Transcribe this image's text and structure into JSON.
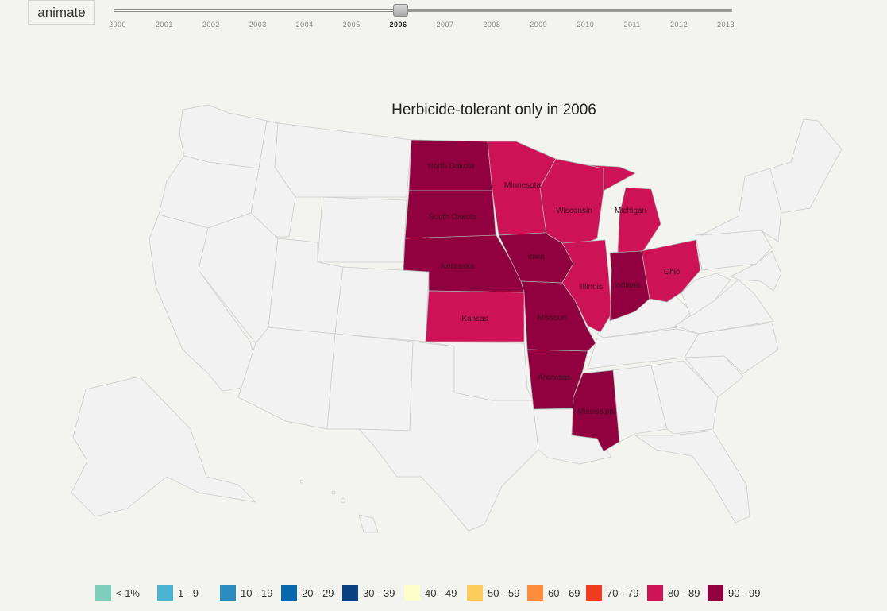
{
  "controls": {
    "animate_label": "animate",
    "selected_year": "2006",
    "years": [
      "2000",
      "2001",
      "2002",
      "2003",
      "2004",
      "2005",
      "2006",
      "2007",
      "2008",
      "2009",
      "2010",
      "2011",
      "2012",
      "2013"
    ]
  },
  "map": {
    "title": "Herbicide-tolerant only in 2006",
    "default_color": "#f2f2f2",
    "states": [
      {
        "name": "North Dakota",
        "bin": "90 - 99"
      },
      {
        "name": "South Dakota",
        "bin": "90 - 99"
      },
      {
        "name": "Nebraska",
        "bin": "90 - 99"
      },
      {
        "name": "Kansas",
        "bin": "80 - 89"
      },
      {
        "name": "Minnesota",
        "bin": "80 - 89"
      },
      {
        "name": "Iowa",
        "bin": "90 - 99"
      },
      {
        "name": "Missouri",
        "bin": "90 - 99"
      },
      {
        "name": "Arkansas",
        "bin": "90 - 99"
      },
      {
        "name": "Mississippi",
        "bin": "90 - 99"
      },
      {
        "name": "Wisconsin",
        "bin": "80 - 89"
      },
      {
        "name": "Illinois",
        "bin": "80 - 89"
      },
      {
        "name": "Michigan",
        "bin": "80 - 89"
      },
      {
        "name": "Indiana",
        "bin": "90 - 99"
      },
      {
        "name": "Ohio",
        "bin": "80 - 89"
      }
    ]
  },
  "legend": [
    {
      "label": "< 1%",
      "color": "#7fcdbb"
    },
    {
      "label": "1 - 9",
      "color": "#4eb3d3"
    },
    {
      "label": "10 - 19",
      "color": "#2b8cbe"
    },
    {
      "label": "20 - 29",
      "color": "#0868ac"
    },
    {
      "label": "30 - 39",
      "color": "#084081"
    },
    {
      "label": "40 - 49",
      "color": "#ffffcc"
    },
    {
      "label": "50 - 59",
      "color": "#fecc5c"
    },
    {
      "label": "60 - 69",
      "color": "#fd8d3c"
    },
    {
      "label": "70 - 79",
      "color": "#f03b20"
    },
    {
      "label": "80 - 89",
      "color": "#ce1256"
    },
    {
      "label": "90 - 99",
      "color": "#91003f"
    }
  ]
}
